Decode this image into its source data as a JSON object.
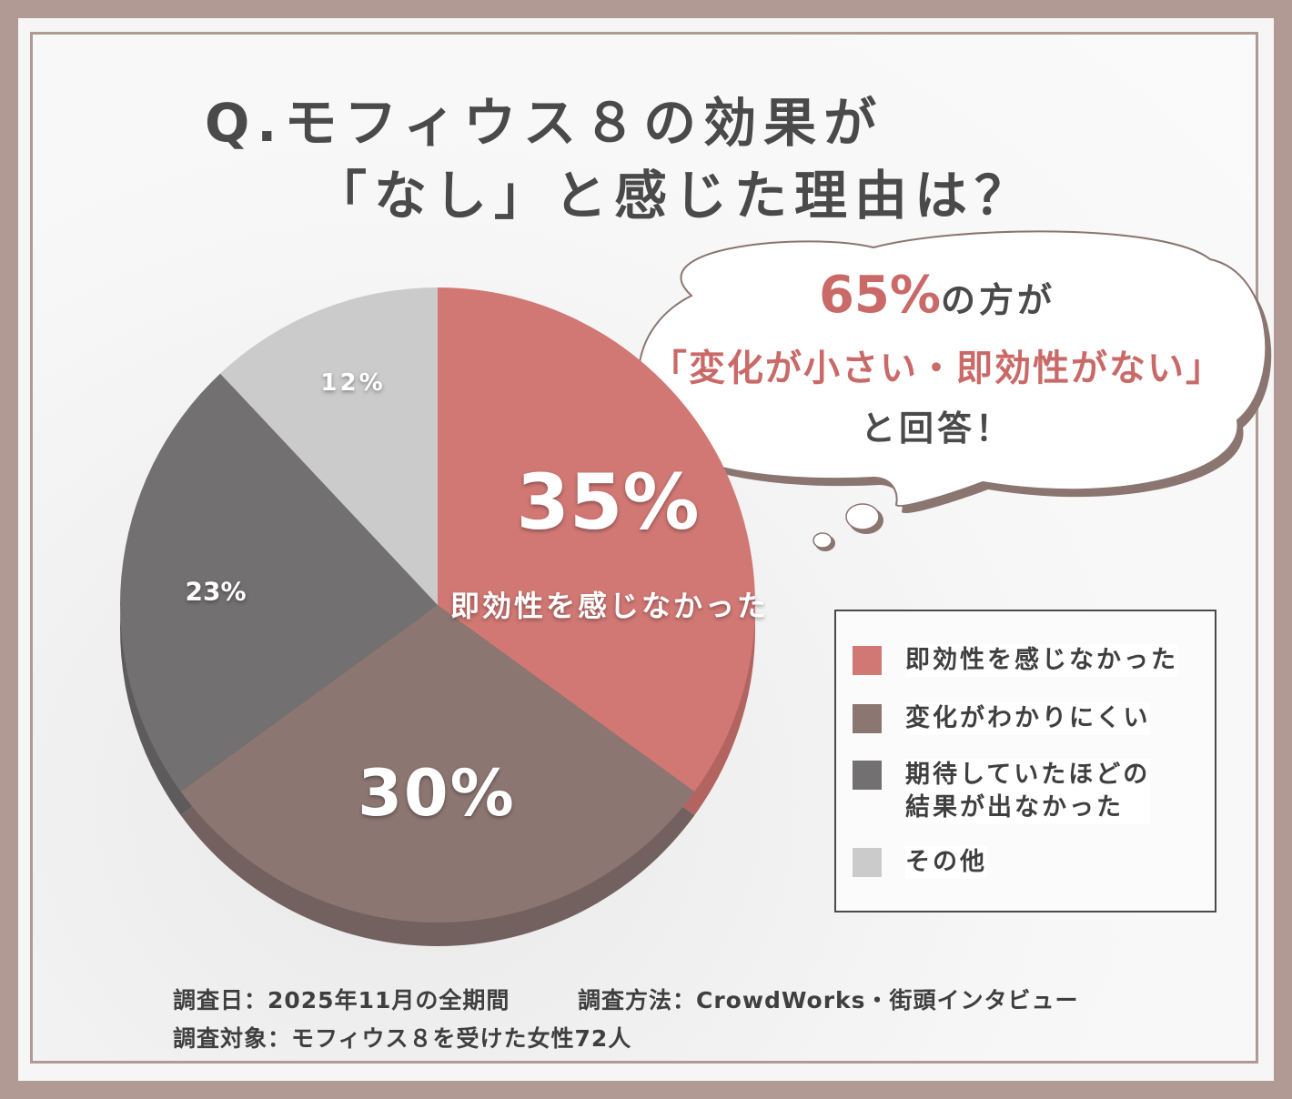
{
  "title": {
    "line1": "Q.モフィウス８の効果が",
    "line2": "「なし」と感じた理由は？"
  },
  "callout": {
    "percent": "65%",
    "line1_suffix": "の方が",
    "line2": "「変化が小さい・即効性がない」",
    "line3": "と回答！"
  },
  "chart_data": {
    "type": "pie",
    "categories": [
      "即効性を感じなかった",
      "変化がわかりにくい",
      "期待していたほどの結果が出なかった",
      "その他"
    ],
    "values": [
      35,
      30,
      23,
      12
    ],
    "labels": [
      "35%",
      "30%",
      "23%",
      "12%"
    ],
    "slice_sublabel": "即効性を感じなかった",
    "colors": [
      "#d17874",
      "#8c7672",
      "#727070",
      "#cbcbcb"
    ],
    "legend": {
      "placement": "bottom-right",
      "entries": [
        "即効性を感じなかった",
        "変化がわかりにくい",
        "期待していたほどの\n結果が出なかった",
        "その他"
      ]
    }
  },
  "footer": {
    "date": "調査日：2025年11月の全期間",
    "method": "調査方法：CrowdWorks・街頭インタビュー",
    "target": "調査対象：モフィウス８を受けた女性72人"
  }
}
